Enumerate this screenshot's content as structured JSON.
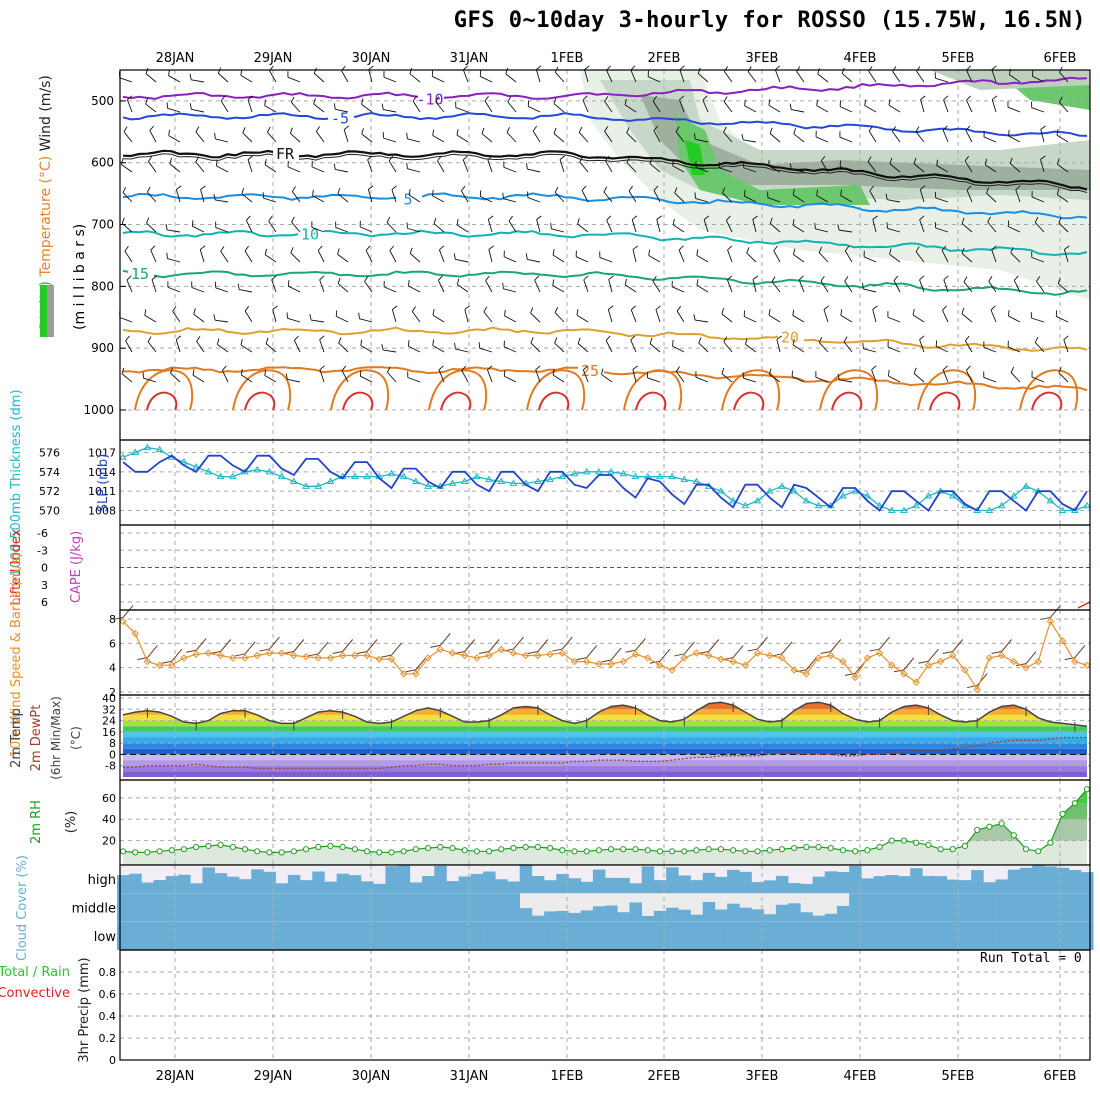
{
  "title": "GFS 0~10day 3-hourly for ROSSO (15.75W, 16.5N)",
  "dates": [
    "28JAN",
    "29JAN",
    "30JAN",
    "31JAN",
    "1FEB",
    "2FEB",
    "3FEB",
    "4FEB",
    "5FEB",
    "6FEB"
  ],
  "colors": {
    "rh": "#2cc02c",
    "temperature": "#e8842a",
    "wind": "#7a3bbf",
    "slp": "#2244cc",
    "thickness": "#20b8c8",
    "lifted": "#e02020",
    "cape": "#c040c0",
    "wind10": "#e8902a",
    "temp2m": "#404040",
    "rh2m": "#20a020",
    "cloud": "#6aaed6",
    "precip_total": "#30c030",
    "precip_conv": "#e02020"
  },
  "chart_data": [
    {
      "type": "heatmap",
      "panel": "upper-air",
      "ylabel_parts": [
        "RH (%)",
        "Temperature (°C)",
        "Wind (m/s)"
      ],
      "ylabel_units": "(m i l l i b a r s)",
      "yticks": [
        500,
        600,
        700,
        800,
        900,
        1000
      ],
      "ylim": [
        450,
        1000
      ],
      "isotherm_labels": [
        {
          "label": "-10",
          "p": 492
        },
        {
          "label": "-5",
          "p": 525
        },
        {
          "label": "FR",
          "p": 586
        },
        {
          "label": "5",
          "p": 655
        },
        {
          "label": "10",
          "p": 715
        },
        {
          "label": "15",
          "p": 780
        },
        {
          "label": "20",
          "p": 872
        },
        {
          "label": "25",
          "p": 935
        }
      ]
    },
    {
      "type": "line",
      "panel": "slp-thickness",
      "ylabel_left": "1000-500mb Thickness (dm)",
      "ylabel_right": "SLP (mb)",
      "yticks_left": [
        570,
        572,
        574,
        576
      ],
      "yticks_right": [
        1008,
        1011,
        1014,
        1017
      ],
      "ylim_slp": [
        1007,
        1018
      ],
      "series": [
        {
          "name": "SLP (mb)",
          "values": [
            1015.5,
            1014,
            1014,
            1015.5,
            1016.5,
            1015,
            1014,
            1016.5,
            1016.5,
            1015,
            1014,
            1016.5,
            1016.5,
            1014.5,
            1013.5,
            1016,
            1016,
            1014,
            1013,
            1015.5,
            1015.5,
            1013,
            1011.5,
            1014.5,
            1014.5,
            1012.5,
            1011.5,
            1014,
            1014,
            1012,
            1011,
            1014,
            1014,
            1012,
            1011,
            1014,
            1014,
            1012,
            1011.5,
            1013.5,
            1013.5,
            1011.5,
            1010,
            1013,
            1012.5,
            1010.5,
            1009,
            1012,
            1012,
            1010,
            1008.5,
            1012,
            1012,
            1010,
            1008.5,
            1012,
            1011.5,
            1010,
            1008.5,
            1011.5,
            1011.5,
            1009.5,
            1008,
            1011,
            1011,
            1009.5,
            1008,
            1011,
            1011,
            1009,
            1008,
            1011,
            1011,
            1009.5,
            1008,
            1011,
            1011,
            1009,
            1008,
            1011
          ]
        },
        {
          "name": "Thickness (dm)",
          "values": [
            575.5,
            576,
            576.5,
            576.3,
            575.5,
            575,
            574.5,
            574,
            573.5,
            573.5,
            574,
            574.2,
            574,
            573.5,
            573,
            572.5,
            572.5,
            573,
            573.5,
            573.5,
            573.5,
            573.5,
            573.8,
            573.5,
            573,
            572.5,
            572.5,
            572.8,
            573,
            573.5,
            573.2,
            573,
            572.8,
            572.8,
            573,
            573.2,
            573.5,
            573.8,
            574,
            574,
            574,
            573.8,
            573.5,
            573.5,
            573.5,
            573.5,
            573.2,
            573,
            572.5,
            572,
            571,
            570.5,
            571,
            572,
            572.5,
            572,
            571,
            570.5,
            570.5,
            571.5,
            572,
            571.5,
            570.5,
            570,
            570,
            570.5,
            571.5,
            572,
            571.5,
            570.5,
            570,
            570,
            570.5,
            571.5,
            572.5,
            572,
            571,
            570,
            570,
            570.5
          ]
        }
      ]
    },
    {
      "type": "line",
      "panel": "lifted-cape",
      "ylabel": "Lifted Index",
      "ylabel2": "CAPE (J/kg)",
      "yticks": [
        "-6",
        "-3",
        "0",
        "3",
        "6"
      ],
      "ylim": [
        -6,
        6
      ],
      "values_lifted": [],
      "note_values": "none"
    },
    {
      "type": "line",
      "panel": "wind10m",
      "ylabel": "10m Wind Speed & Barbs (m/s)",
      "yticks": [
        2,
        4,
        6,
        8
      ],
      "ylim": [
        2,
        8
      ],
      "series": [
        {
          "name": "10m Wind Speed",
          "values": [
            7.8,
            6.8,
            4.5,
            4.2,
            4.2,
            4.8,
            5.1,
            5.2,
            5,
            4.8,
            4.8,
            5,
            5.2,
            5.2,
            5,
            4.9,
            4.8,
            4.8,
            5,
            5,
            5,
            4.7,
            4.7,
            3.5,
            3.5,
            4.8,
            5.5,
            5.2,
            5,
            4.8,
            5,
            5.5,
            5.2,
            5,
            5,
            5.1,
            5.2,
            4.5,
            4.5,
            4.3,
            4.3,
            4.5,
            5.1,
            4.8,
            4.2,
            3.8,
            4.8,
            5.2,
            5,
            4.7,
            4.5,
            4.2,
            5.2,
            5,
            4.8,
            3.8,
            3.5,
            4.8,
            5,
            4.5,
            3.2,
            4.8,
            5.2,
            4.2,
            3.5,
            2.8,
            4.2,
            4.5,
            5,
            3.8,
            2.2,
            4.8,
            5,
            4.5,
            4,
            4.5,
            7.8,
            6.2,
            4.5,
            4.2
          ]
        }
      ]
    },
    {
      "type": "area",
      "panel": "temp2m",
      "ylabel": "2m Temp 2m DewPt (6hr Min/Max) (°C)",
      "yticks": [
        "-8",
        "0",
        "8",
        "16",
        "24",
        "32",
        "40"
      ],
      "ylim": [
        -16,
        40
      ],
      "series": [
        {
          "name": "2m Temp (°C)",
          "values": [
            28,
            30,
            31,
            30,
            27,
            23,
            22,
            24,
            29,
            31,
            31,
            28,
            24,
            22,
            22,
            26,
            30,
            31,
            30,
            27,
            23,
            22,
            23,
            27,
            31,
            33,
            31,
            27,
            23,
            23,
            24,
            28,
            33,
            34,
            33,
            28,
            24,
            22,
            24,
            30,
            34,
            35,
            33,
            28,
            24,
            23,
            25,
            31,
            36,
            37,
            35,
            30,
            25,
            23,
            24,
            31,
            36,
            37,
            35,
            29,
            25,
            23,
            24,
            30,
            34,
            35,
            33,
            28,
            24,
            23,
            24,
            30,
            34,
            35,
            32,
            26,
            23,
            22,
            21,
            20
          ]
        },
        {
          "name": "2m DewPt (°C)",
          "values": [
            -9,
            -9,
            -8,
            -8,
            -8,
            -8,
            -7,
            -8,
            -9,
            -9,
            -9,
            -10,
            -10,
            -10,
            -10,
            -10,
            -10,
            -10,
            -10,
            -10,
            -10,
            -10,
            -9,
            -8,
            -8,
            -7,
            -7,
            -8,
            -8,
            -8,
            -7,
            -7,
            -6,
            -6,
            -6,
            -6,
            -6,
            -5,
            -5,
            -4,
            -4,
            -4,
            -5,
            -5,
            -5,
            -4,
            -3,
            -2,
            -2,
            -1,
            -1,
            -1,
            -1,
            0,
            1,
            1,
            0,
            0,
            0,
            -1,
            -1,
            0,
            0,
            1,
            2,
            3,
            3,
            3,
            4,
            5,
            6,
            8,
            9,
            10,
            10,
            10,
            11,
            12,
            12,
            12
          ]
        }
      ]
    },
    {
      "type": "area",
      "panel": "rh2m",
      "ylabel": "2m RH (%)",
      "yticks": [
        20,
        40,
        60
      ],
      "ylim": [
        0,
        72
      ],
      "series": [
        {
          "name": "2m RH (%)",
          "values": [
            10,
            9,
            9,
            10,
            11,
            12,
            14,
            15,
            16,
            14,
            12,
            10,
            9,
            9,
            10,
            12,
            14,
            15,
            14,
            12,
            10,
            9,
            9,
            10,
            12,
            13,
            14,
            13,
            11,
            10,
            10,
            12,
            13,
            14,
            14,
            13,
            11,
            10,
            10,
            11,
            12,
            12,
            12,
            11,
            10,
            10,
            10,
            11,
            12,
            12,
            11,
            10,
            10,
            11,
            12,
            13,
            14,
            14,
            13,
            11,
            10,
            11,
            14,
            20,
            20,
            18,
            16,
            12,
            12,
            15,
            30,
            33,
            36,
            25,
            12,
            10,
            18,
            45,
            55,
            68
          ]
        }
      ]
    },
    {
      "type": "heatmap",
      "panel": "cloud-cover",
      "ylabel": "Cloud Cover (%)",
      "levels": [
        "high",
        "middle",
        "low"
      ]
    },
    {
      "type": "bar",
      "panel": "precip",
      "ylabel": "3hr Precip (mm)",
      "legend": [
        "Total / Rain",
        "Convective"
      ],
      "yticks": [
        "0",
        "0.2",
        "0.4",
        "0.6",
        "0.8"
      ],
      "ylim": [
        0,
        1
      ],
      "values": []
    }
  ],
  "run_total": "Run Total = 0"
}
